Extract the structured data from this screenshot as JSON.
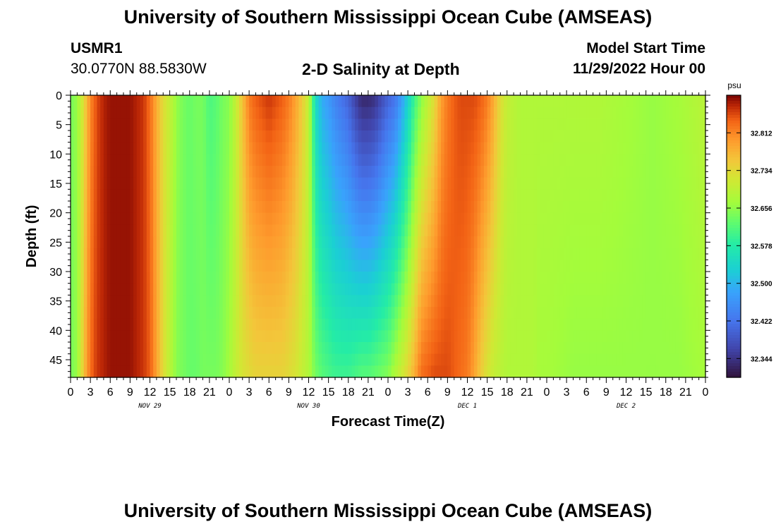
{
  "header": {
    "title": "University of Southern Mississippi Ocean Cube (AMSEAS)",
    "station_id": "USMR1",
    "station_coords": "30.0770N  88.5830W",
    "plot_title": "2-D Salinity at Depth",
    "model_start_label": "Model Start Time",
    "model_start_value": "11/29/2022 Hour 00"
  },
  "footer": {
    "title": "University of Southern Mississippi Ocean Cube (AMSEAS)"
  },
  "chart_data": {
    "type": "heatmap",
    "title": "2-D Salinity at Depth",
    "xlabel": "Forecast Time(Z)",
    "ylabel": "Depth (ft)",
    "units": "psu",
    "x_hours_range": [
      0,
      96
    ],
    "y_depth_range": [
      0,
      48
    ],
    "y_ticks": [
      0,
      5,
      10,
      15,
      20,
      25,
      30,
      35,
      40,
      45
    ],
    "x_tick_labels": [
      "0",
      "3",
      "6",
      "9",
      "12",
      "15",
      "18",
      "21",
      "0",
      "3",
      "6",
      "9",
      "12",
      "15",
      "18",
      "21",
      "0",
      "3",
      "6",
      "9",
      "12",
      "15",
      "18",
      "21",
      "0",
      "3",
      "6",
      "9",
      "12",
      "15",
      "18",
      "21",
      "0"
    ],
    "date_labels": [
      {
        "text": "NOV 29",
        "hour": 12
      },
      {
        "text": "NOV 30",
        "hour": 36
      },
      {
        "text": "DEC 1",
        "hour": 60
      },
      {
        "text": "DEC 2",
        "hour": 84
      }
    ],
    "colorbar": {
      "min": 32.305,
      "max": 32.89,
      "tick_values": [
        "32.812",
        "32.734",
        "32.656",
        "32.578",
        "32.500",
        "32.422",
        "32.344"
      ]
    },
    "salinity_profiles": {
      "hours": [
        0,
        1,
        2,
        3,
        4,
        5,
        6,
        7,
        8,
        9,
        10,
        11,
        12,
        13,
        14,
        15,
        16,
        17,
        18,
        19,
        20,
        21,
        22,
        23,
        24,
        25,
        26,
        27,
        28,
        29,
        30,
        31,
        32,
        33,
        34,
        35,
        36,
        37,
        38,
        39,
        40,
        41,
        42,
        43,
        44,
        45,
        46,
        47,
        48,
        49,
        50,
        51,
        52,
        53,
        54,
        55,
        56,
        57,
        58,
        59,
        60,
        61,
        62,
        63,
        64,
        65,
        66,
        67,
        68,
        69,
        70,
        71,
        72,
        76,
        80,
        84,
        88,
        92,
        96
      ],
      "surface": [
        32.64,
        32.66,
        32.73,
        32.81,
        32.85,
        32.87,
        32.88,
        32.88,
        32.88,
        32.88,
        32.87,
        32.86,
        32.83,
        32.78,
        32.73,
        32.7,
        32.66,
        32.64,
        32.63,
        32.64,
        32.64,
        32.61,
        32.62,
        32.64,
        32.65,
        32.7,
        32.76,
        32.82,
        32.84,
        32.85,
        32.86,
        32.85,
        32.84,
        32.82,
        32.79,
        32.75,
        32.7,
        32.55,
        32.49,
        32.47,
        32.44,
        32.42,
        32.4,
        32.36,
        32.33,
        32.33,
        32.34,
        32.37,
        32.4,
        32.42,
        32.47,
        32.53,
        32.6,
        32.65,
        32.69,
        32.73,
        32.79,
        32.82,
        32.84,
        32.85,
        32.85,
        32.85,
        32.84,
        32.82,
        32.78,
        32.73,
        32.7,
        32.69,
        32.68,
        32.68,
        32.68,
        32.68,
        32.68,
        32.68,
        32.68,
        32.67,
        32.66,
        32.67,
        32.69
      ],
      "bottom": [
        32.64,
        32.66,
        32.76,
        32.83,
        32.86,
        32.87,
        32.88,
        32.88,
        32.88,
        32.88,
        32.87,
        32.86,
        32.84,
        32.79,
        32.73,
        32.69,
        32.65,
        32.64,
        32.63,
        32.63,
        32.64,
        32.64,
        32.64,
        32.65,
        32.67,
        32.7,
        32.72,
        32.73,
        32.74,
        32.74,
        32.74,
        32.74,
        32.74,
        32.73,
        32.72,
        32.7,
        32.68,
        32.64,
        32.62,
        32.61,
        32.6,
        32.6,
        32.6,
        32.61,
        32.62,
        32.62,
        32.63,
        32.64,
        32.65,
        32.68,
        32.71,
        32.74,
        32.78,
        32.83,
        32.84,
        32.85,
        32.85,
        32.85,
        32.84,
        32.83,
        32.82,
        32.79,
        32.75,
        32.72,
        32.7,
        32.69,
        32.68,
        32.68,
        32.68,
        32.68,
        32.68,
        32.67,
        32.67,
        32.66,
        32.66,
        32.66,
        32.66,
        32.66,
        32.67
      ]
    }
  }
}
